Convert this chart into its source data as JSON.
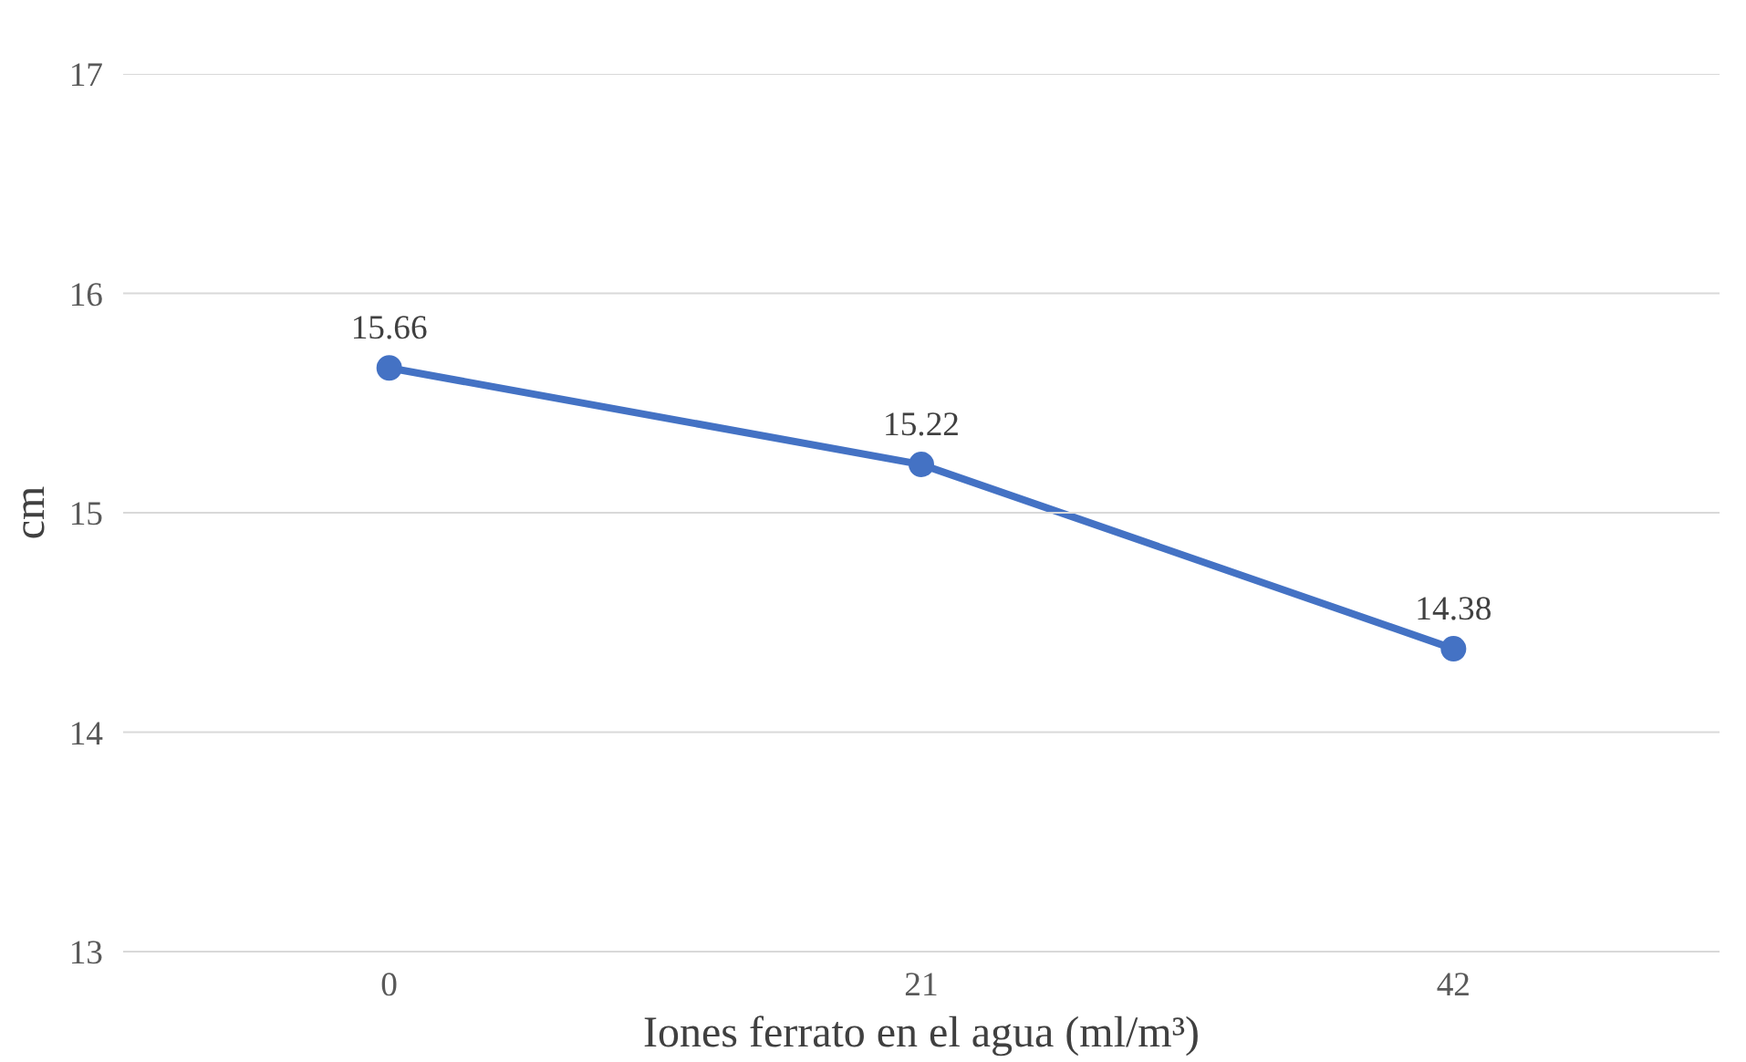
{
  "chart_data": {
    "type": "line",
    "xlabel": "Iones ferrato en el agua (ml/m³)",
    "ylabel": "cm",
    "categories": [
      "0",
      "21",
      "42"
    ],
    "series": [
      {
        "color": "#4472c4",
        "values": [
          15.66,
          15.22,
          14.38
        ]
      }
    ],
    "ylim": [
      13,
      17
    ],
    "yticks": [
      13,
      14,
      15,
      16,
      17
    ],
    "grid": "y",
    "marker": "circle",
    "line_style": "solid",
    "data_labels": true
  }
}
